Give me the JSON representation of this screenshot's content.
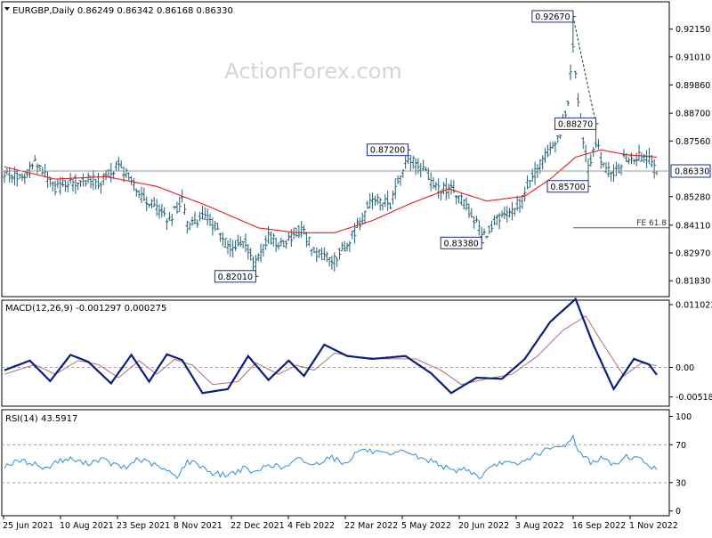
{
  "colors": {
    "background": "#ffffff",
    "price_bar": "#1f5f73",
    "moving_average": "#e02020",
    "macd_line": "#0b1f7a",
    "signal_line": "#b07070",
    "rsi_line": "#2f8fd0",
    "axis": "#000000",
    "grid_dashed": "#a0a0a0",
    "label_border": "#1a2f8a",
    "watermark": "#d5d5d5"
  },
  "watermark": "ActionForex.com",
  "chart_data": [
    {
      "type": "ohlc",
      "header": "EURGBP,Daily  0.86249 0.86342 0.86168 0.86330",
      "symbol": "EURGBP",
      "timeframe": "Daily",
      "last_ohlc": {
        "open": 0.86249,
        "high": 0.86342,
        "low": 0.86168,
        "close": 0.8633
      },
      "ylim": [
        0.8118,
        0.9327
      ],
      "ytick_values": [
        0.8183,
        0.8297,
        0.8411,
        0.8528,
        0.8633,
        0.8756,
        0.887,
        0.8986,
        0.9101,
        0.9215
      ],
      "ytick_labels": [
        "0.81830",
        "0.82970",
        "0.84110",
        "0.85280",
        "0.86330",
        "0.87560",
        "0.88700",
        "0.89860",
        "0.91010",
        "0.92150"
      ],
      "xtick_labels": [
        "25 Jun 2021",
        "10 Aug 2021",
        "23 Sep 2021",
        "8 Nov 2021",
        "22 Dec 2021",
        "4 Feb 2022",
        "22 Mar 2022",
        "5 May 2022",
        "20 Jun 2022",
        "3 Aug 2022",
        "16 Sep 2022",
        "1 Nov 2022"
      ],
      "current_price": {
        "value": 0.8633,
        "label": "0.86330"
      },
      "annotations": [
        {
          "label": "0.87200",
          "value": 0.872,
          "date_index": 159
        },
        {
          "label": "0.82010",
          "value": 0.8201,
          "date_index": 99
        },
        {
          "label": "0.83380",
          "value": 0.8338,
          "date_index": 188
        },
        {
          "label": "0.92670",
          "value": 0.9267,
          "date_index": 224
        },
        {
          "label": "0.88270",
          "value": 0.8827,
          "date_index": 233
        },
        {
          "label": "0.85700",
          "value": 0.857,
          "date_index": 230
        }
      ],
      "fib_line": {
        "label": "FE 61.8",
        "value": 0.84,
        "from_index": 224,
        "to_index": 257
      },
      "trend_line": {
        "from_index": 224,
        "from_value": 0.9267,
        "to_index": 233,
        "to_value": 0.8827
      },
      "key_points": [
        [
          0,
          0.862
        ],
        [
          8,
          0.8605
        ],
        [
          12,
          0.867
        ],
        [
          20,
          0.856
        ],
        [
          30,
          0.86
        ],
        [
          38,
          0.859
        ],
        [
          45,
          0.866
        ],
        [
          55,
          0.852
        ],
        [
          65,
          0.843
        ],
        [
          70,
          0.852
        ],
        [
          72,
          0.841
        ],
        [
          80,
          0.845
        ],
        [
          88,
          0.832
        ],
        [
          95,
          0.834
        ],
        [
          99,
          0.825
        ],
        [
          104,
          0.836
        ],
        [
          110,
          0.833
        ],
        [
          117,
          0.84
        ],
        [
          122,
          0.83
        ],
        [
          130,
          0.827
        ],
        [
          136,
          0.835
        ],
        [
          145,
          0.852
        ],
        [
          152,
          0.85
        ],
        [
          159,
          0.869
        ],
        [
          165,
          0.864
        ],
        [
          170,
          0.856
        ],
        [
          176,
          0.856
        ],
        [
          182,
          0.849
        ],
        [
          186,
          0.842
        ],
        [
          188,
          0.836
        ],
        [
          195,
          0.844
        ],
        [
          201,
          0.846
        ],
        [
          206,
          0.857
        ],
        [
          212,
          0.868
        ],
        [
          218,
          0.876
        ],
        [
          222,
          0.89
        ],
        [
          224,
          0.914
        ],
        [
          227,
          0.883
        ],
        [
          230,
          0.864
        ],
        [
          233,
          0.876
        ],
        [
          236,
          0.865
        ],
        [
          240,
          0.861
        ],
        [
          244,
          0.868
        ],
        [
          249,
          0.869
        ],
        [
          253,
          0.869
        ],
        [
          257,
          0.8633
        ]
      ],
      "ma_points": [
        [
          0,
          0.865
        ],
        [
          20,
          0.86
        ],
        [
          40,
          0.861
        ],
        [
          60,
          0.857
        ],
        [
          80,
          0.849
        ],
        [
          100,
          0.84
        ],
        [
          115,
          0.838
        ],
        [
          130,
          0.838
        ],
        [
          145,
          0.843
        ],
        [
          160,
          0.85
        ],
        [
          175,
          0.856
        ],
        [
          190,
          0.851
        ],
        [
          205,
          0.853
        ],
        [
          215,
          0.86
        ],
        [
          225,
          0.869
        ],
        [
          235,
          0.872
        ],
        [
          245,
          0.87
        ],
        [
          257,
          0.869
        ]
      ]
    },
    {
      "type": "line",
      "header": "MACD(12,26,9) -0.001297 0.000275",
      "title": "MACD(12,26,9)",
      "values": {
        "macd": -0.001297,
        "signal": 0.000275
      },
      "ylim": [
        -0.0068,
        0.0118
      ],
      "ytick_values": [
        0.011023,
        0.0,
        -0.005182
      ],
      "ytick_labels": [
        "0.011023",
        "0.00",
        "-0.005182"
      ],
      "zero_line_label": "0.00",
      "series": [
        {
          "key": "macd",
          "points": [
            [
              0,
              -0.0005
            ],
            [
              10,
              0.0012
            ],
            [
              18,
              -0.0024
            ],
            [
              26,
              0.0022
            ],
            [
              33,
              0.001
            ],
            [
              42,
              -0.0028
            ],
            [
              50,
              0.0022
            ],
            [
              57,
              -0.0025
            ],
            [
              64,
              0.0023
            ],
            [
              70,
              0.0013
            ],
            [
              78,
              -0.0045
            ],
            [
              88,
              -0.0038
            ],
            [
              96,
              0.002
            ],
            [
              104,
              -0.0022
            ],
            [
              112,
              0.0012
            ],
            [
              118,
              -0.0015
            ],
            [
              126,
              0.004
            ],
            [
              135,
              0.002
            ],
            [
              145,
              0.0015
            ],
            [
              158,
              0.002
            ],
            [
              168,
              -0.001
            ],
            [
              176,
              -0.0045
            ],
            [
              186,
              -0.0018
            ],
            [
              196,
              -0.002
            ],
            [
              205,
              0.0015
            ],
            [
              215,
              0.008
            ],
            [
              225,
              0.012
            ],
            [
              232,
              0.004
            ],
            [
              240,
              -0.0038
            ],
            [
              248,
              0.0015
            ],
            [
              254,
              0.0005
            ],
            [
              257,
              -0.0013
            ]
          ]
        },
        {
          "key": "signal",
          "points": [
            [
              0,
              -0.0012
            ],
            [
              12,
              0.0005
            ],
            [
              20,
              -0.0012
            ],
            [
              29,
              0.0012
            ],
            [
              37,
              0.0005
            ],
            [
              45,
              -0.0018
            ],
            [
              53,
              0.0012
            ],
            [
              60,
              -0.0012
            ],
            [
              67,
              0.0014
            ],
            [
              74,
              0.0004
            ],
            [
              82,
              -0.003
            ],
            [
              92,
              -0.0025
            ],
            [
              99,
              0.0008
            ],
            [
              108,
              -0.0012
            ],
            [
              115,
              0.0004
            ],
            [
              122,
              -0.0005
            ],
            [
              130,
              0.0025
            ],
            [
              140,
              0.0018
            ],
            [
              150,
              0.0015
            ],
            [
              162,
              0.0015
            ],
            [
              172,
              -0.0005
            ],
            [
              180,
              -0.003
            ],
            [
              190,
              -0.002
            ],
            [
              200,
              -0.0012
            ],
            [
              210,
              0.002
            ],
            [
              220,
              0.0065
            ],
            [
              229,
              0.009
            ],
            [
              236,
              0.004
            ],
            [
              244,
              -0.0015
            ],
            [
              251,
              0.0008
            ],
            [
              257,
              0.0003
            ]
          ]
        }
      ]
    },
    {
      "type": "line",
      "header": "RSI(14) 43.5917",
      "title": "RSI(14)",
      "value": 43.5917,
      "ylim": [
        -5.0,
        107.0
      ],
      "ytick_values": [
        100,
        70,
        30,
        0
      ],
      "ytick_labels": [
        "100",
        "70",
        "30",
        "0"
      ],
      "levels": [
        70,
        30
      ],
      "points": [
        [
          0,
          48
        ],
        [
          6,
          53
        ],
        [
          12,
          50
        ],
        [
          16,
          44
        ],
        [
          20,
          52
        ],
        [
          26,
          55
        ],
        [
          32,
          50
        ],
        [
          38,
          55
        ],
        [
          42,
          50
        ],
        [
          48,
          45
        ],
        [
          52,
          55
        ],
        [
          58,
          50
        ],
        [
          64,
          42
        ],
        [
          68,
          37
        ],
        [
          72,
          52
        ],
        [
          76,
          50
        ],
        [
          82,
          40
        ],
        [
          88,
          38
        ],
        [
          94,
          45
        ],
        [
          99,
          40
        ],
        [
          104,
          50
        ],
        [
          110,
          45
        ],
        [
          116,
          55
        ],
        [
          122,
          48
        ],
        [
          128,
          58
        ],
        [
          134,
          50
        ],
        [
          140,
          65
        ],
        [
          146,
          62
        ],
        [
          152,
          58
        ],
        [
          158,
          64
        ],
        [
          164,
          55
        ],
        [
          170,
          52
        ],
        [
          176,
          42
        ],
        [
          182,
          45
        ],
        [
          187,
          35
        ],
        [
          190,
          42
        ],
        [
          196,
          52
        ],
        [
          202,
          48
        ],
        [
          208,
          58
        ],
        [
          214,
          65
        ],
        [
          220,
          68
        ],
        [
          224,
          78
        ],
        [
          227,
          60
        ],
        [
          231,
          52
        ],
        [
          236,
          56
        ],
        [
          240,
          48
        ],
        [
          245,
          58
        ],
        [
          250,
          55
        ],
        [
          254,
          49
        ],
        [
          257,
          43.6
        ]
      ]
    }
  ]
}
